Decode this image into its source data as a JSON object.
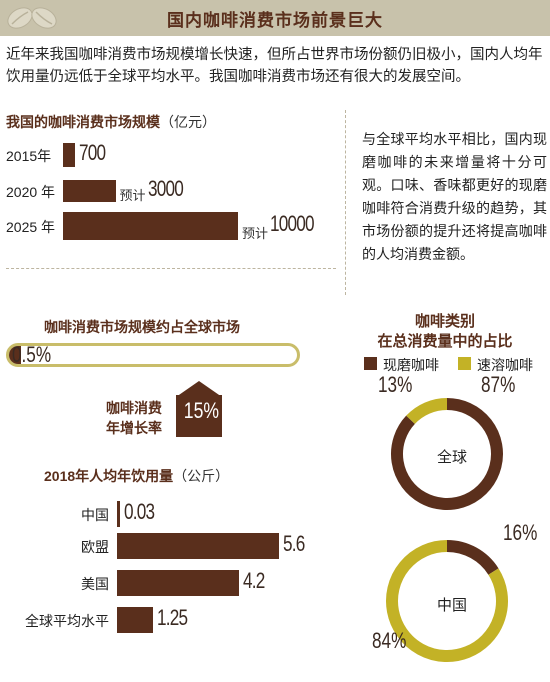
{
  "header": {
    "title": "国内咖啡消费市场前景巨大"
  },
  "intro": "近年来我国咖啡消费市场规模增长快速，但所占世界市场份额仍旧极小，国内人均年饮用量仍远低于全球平均水平。我国咖啡消费市场还有很大的发展空间。",
  "right_text": "与全球平均水平相比，国内现磨咖啡的未来增量将十分可观。口味、香味都更好的现磨咖啡符合消费升级的趋势，其市场份额的提升还将提高咖啡的人均消费金额。",
  "colors": {
    "dark_brown": "#5a2f1c",
    "olive": "#c3b226",
    "header_band": "#c8c2ab"
  },
  "icons": {
    "header_decoration": "coffee-beans-icon",
    "growth_arrow": "up-arrow-icon"
  },
  "chart_data": [
    {
      "type": "bar",
      "title": "我国的咖啡消费市场规模",
      "unit": "（亿元）",
      "categories": [
        "2015年",
        "2020 年",
        "2025 年"
      ],
      "values": [
        700,
        3000,
        10000
      ],
      "value_labels": [
        "700",
        "3000",
        "10000"
      ],
      "prefixes": [
        "",
        "预计",
        "预计"
      ]
    },
    {
      "type": "bar",
      "title": "咖啡消费市场规模约占全球市场",
      "values": [
        0.5
      ],
      "value_labels": [
        "0.5%"
      ],
      "ylim": [
        0,
        100
      ]
    },
    {
      "type": "table",
      "title": "咖啡消费年增长率",
      "title_lines": [
        "咖啡消费",
        "年增长率"
      ],
      "values": [
        15
      ],
      "value_labels": [
        "15%"
      ]
    },
    {
      "type": "bar",
      "title": "2018年人均年饮用量",
      "unit": "（公斤）",
      "categories": [
        "中国",
        "欧盟",
        "美国",
        "全球平均水平"
      ],
      "values": [
        0.03,
        5.6,
        4.2,
        1.25
      ],
      "value_labels": [
        "0.03",
        "5.6",
        "4.2",
        "1.25"
      ]
    },
    {
      "type": "pie",
      "title_lines": [
        "咖啡类别",
        "在总消费量中的占比"
      ],
      "legend": [
        "现磨咖啡",
        "速溶咖啡"
      ],
      "legend_colors": [
        "#5a2f1c",
        "#c3b226"
      ],
      "charts": [
        {
          "center_label": "全球",
          "values": [
            87,
            13
          ],
          "value_labels": [
            "87%",
            "13%"
          ]
        },
        {
          "center_label": "中国",
          "values": [
            16,
            84
          ],
          "value_labels": [
            "16%",
            "84%"
          ]
        }
      ]
    }
  ]
}
